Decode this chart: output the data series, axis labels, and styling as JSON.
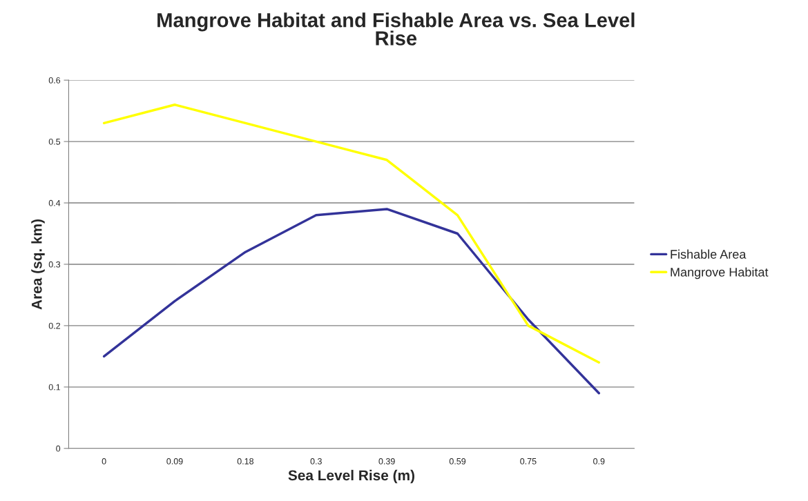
{
  "chart_data": {
    "type": "line",
    "title": "Mangrove Habitat and Fishable Area vs. Sea Level\nRise",
    "xlabel": "Sea Level Rise (m)",
    "ylabel": "Area (sq. km)",
    "categories": [
      "0",
      "0.09",
      "0.18",
      "0.3",
      "0.39",
      "0.59",
      "0.75",
      "0.9"
    ],
    "series": [
      {
        "name": "Fishable Area",
        "color": "#333399",
        "values": [
          0.15,
          0.24,
          0.32,
          0.38,
          0.39,
          0.35,
          0.21,
          0.09
        ]
      },
      {
        "name": "Mangrove Habitat",
        "color": "#ffff00",
        "values": [
          0.53,
          0.56,
          0.53,
          0.5,
          0.47,
          0.38,
          0.2,
          0.14
        ]
      }
    ],
    "ylim": [
      0,
      0.6
    ],
    "yticks": [
      0,
      0.1,
      0.2,
      0.3,
      0.4,
      0.5,
      0.6
    ],
    "grid": "y",
    "legend": "right",
    "marker": "none",
    "line_style": "solid"
  }
}
